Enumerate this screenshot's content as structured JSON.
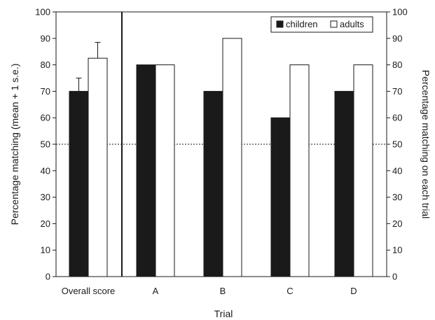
{
  "chart_data": {
    "type": "bar",
    "categories": [
      "Overall score",
      "A",
      "B",
      "C",
      "D"
    ],
    "series": [
      {
        "name": "children",
        "values": [
          70,
          80,
          70,
          60,
          70
        ],
        "error": [
          5,
          null,
          null,
          null,
          null
        ],
        "color": "#1a1a1a"
      },
      {
        "name": "adults",
        "values": [
          82.5,
          80,
          90,
          80,
          80
        ],
        "error": [
          6,
          null,
          null,
          null,
          null
        ],
        "color": "#ffffff"
      }
    ],
    "xlabel": "Trial",
    "ylabel_left": "Percentage matching (mean + 1 s.e.)",
    "ylabel_right": "Percentage matching on each trial",
    "ylim": [
      0,
      100
    ],
    "yticks": [
      0,
      10,
      20,
      30,
      40,
      50,
      60,
      70,
      80,
      90,
      100
    ],
    "reference_line": 50,
    "legend_position": "top-right",
    "grid": false
  }
}
